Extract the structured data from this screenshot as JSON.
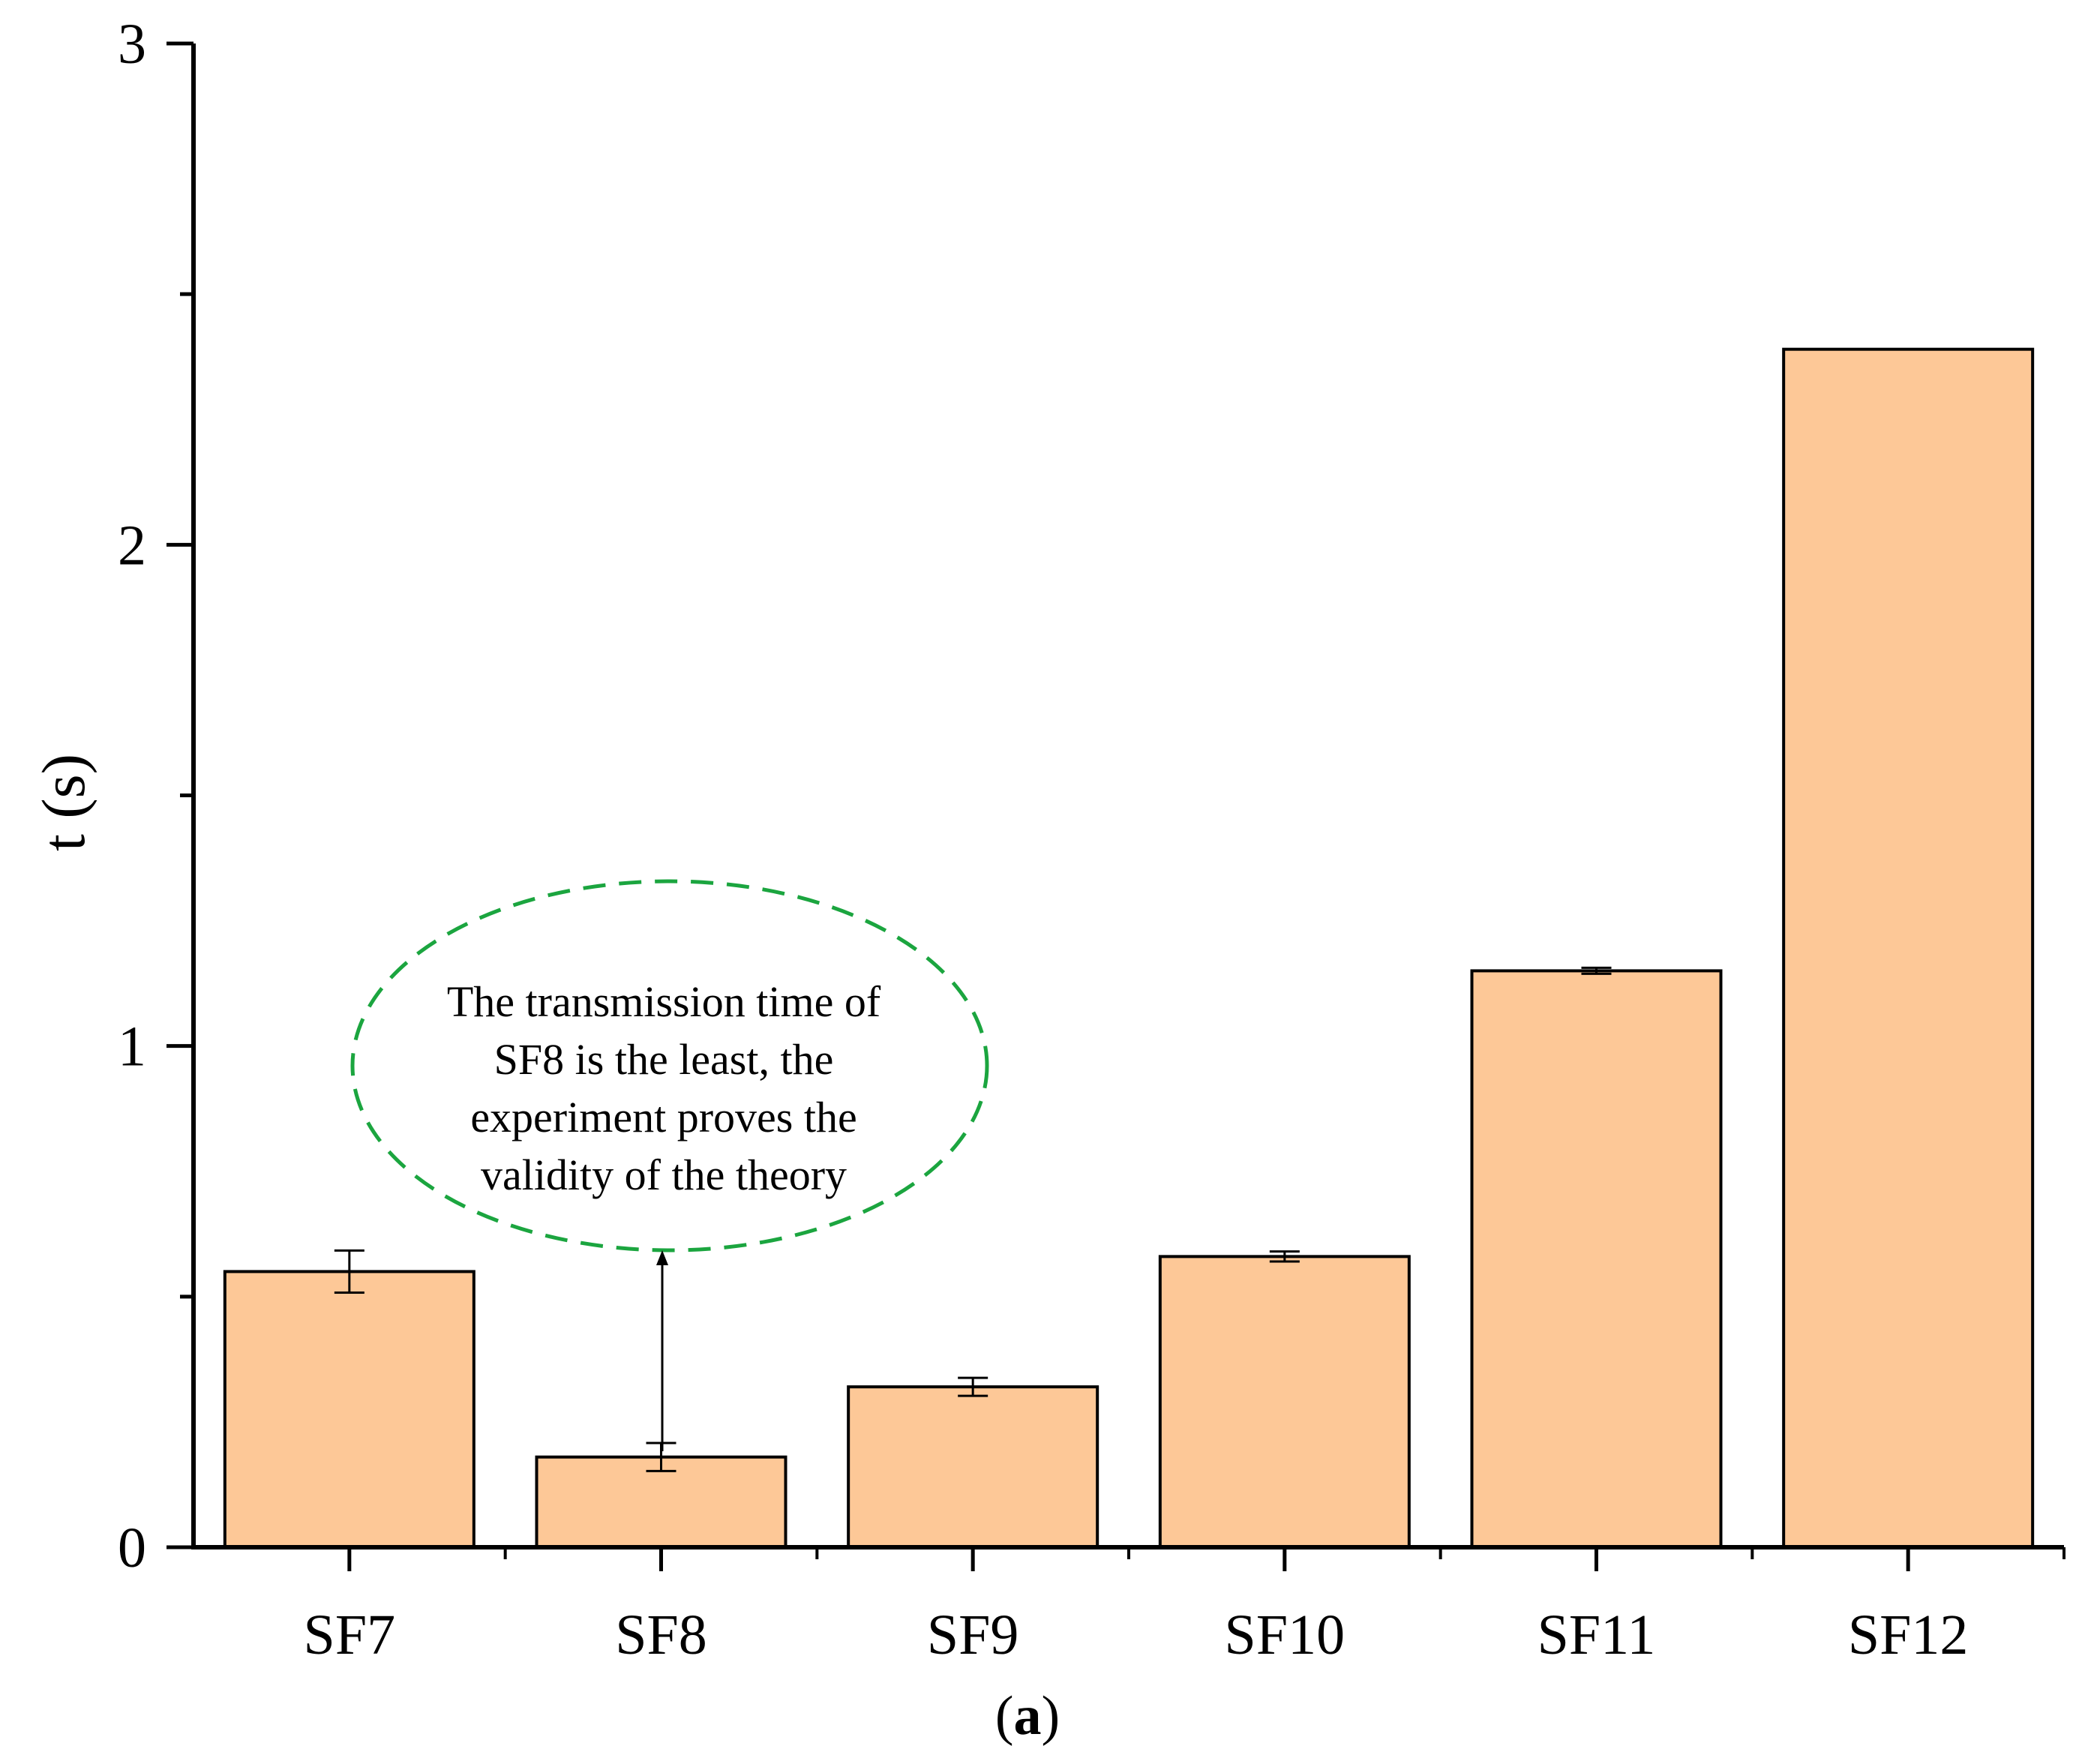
{
  "chart_data": {
    "type": "bar",
    "categories": [
      "SF7",
      "SF8",
      "SF9",
      "SF10",
      "SF11",
      "SF12"
    ],
    "values": [
      0.55,
      0.18,
      0.32,
      0.58,
      1.15,
      2.39
    ],
    "errors": [
      0.042,
      0.028,
      0.018,
      0.01,
      0.006,
      0
    ],
    "ylabel": "t (s)",
    "xlabel": "",
    "ylim": [
      0,
      3
    ],
    "yticks": [
      "0",
      "1",
      "2",
      "3"
    ],
    "bar_color": "#FDC897",
    "grid": false,
    "annotation": {
      "lines": [
        "The transmission time of",
        "SF8 is the least, the",
        "experiment proves the",
        "validity of the theory"
      ],
      "target_category": "SF8",
      "ellipse_color": "#1BA53F"
    },
    "panel_label": {
      "open": "(",
      "letter": "a",
      "close": ")"
    }
  }
}
